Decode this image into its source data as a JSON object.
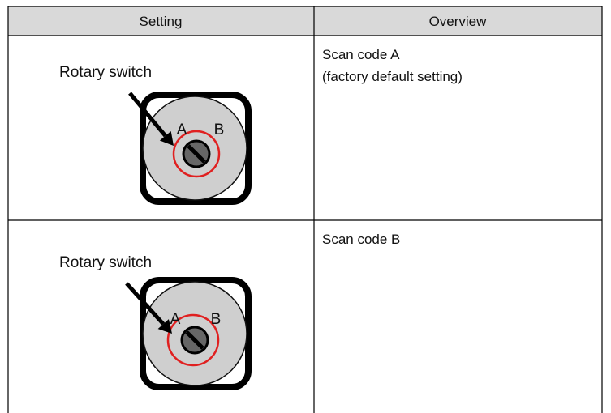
{
  "table": {
    "headers": [
      "Setting",
      "Overview"
    ],
    "rows": [
      {
        "label": "Rotary switch",
        "marks": [
          "A",
          "B"
        ],
        "overview": [
          "Scan code A",
          "(factory default setting)"
        ]
      },
      {
        "label": "Rotary switch",
        "marks": [
          "A",
          "B"
        ],
        "overview": [
          "Scan code B"
        ]
      }
    ]
  }
}
